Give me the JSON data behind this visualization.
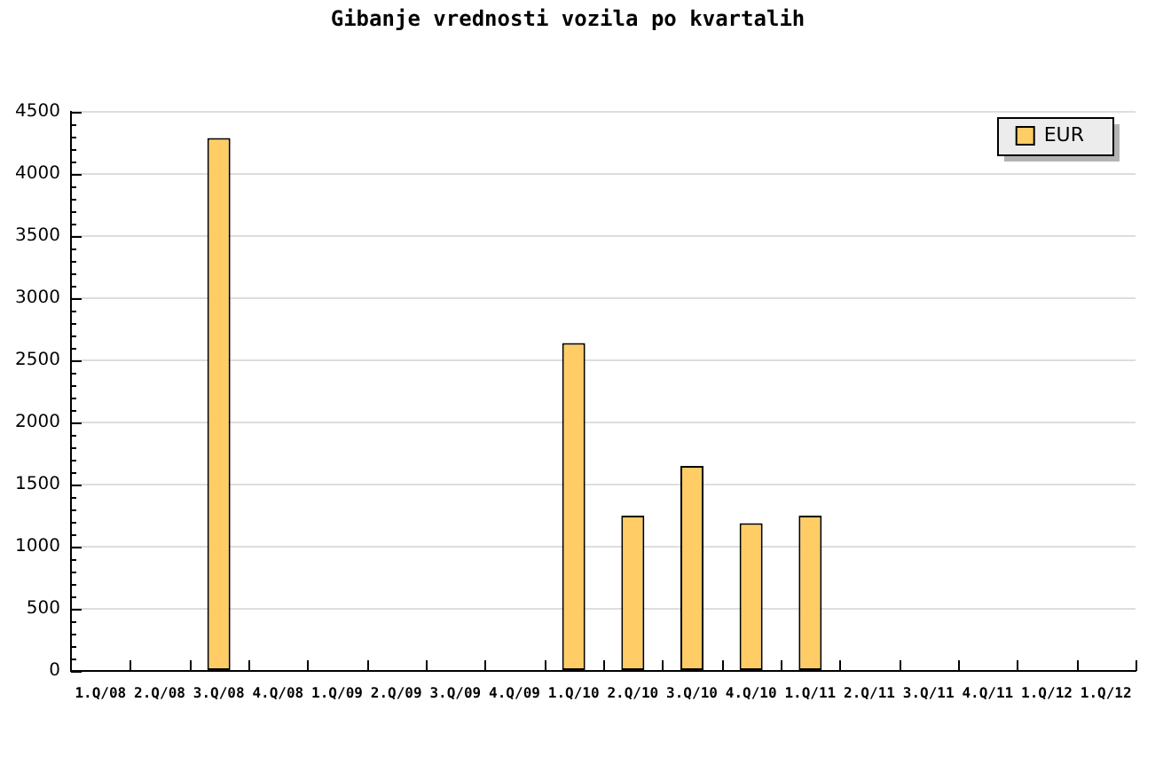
{
  "chart_data": {
    "type": "bar",
    "title": "Gibanje vrednosti vozila po kvartalih",
    "categories": [
      "1.Q/08",
      "2.Q/08",
      "3.Q/08",
      "4.Q/08",
      "1.Q/09",
      "2.Q/09",
      "3.Q/09",
      "4.Q/09",
      "1.Q/10",
      "2.Q/10",
      "3.Q/10",
      "4.Q/10",
      "1.Q/11",
      "2.Q/11",
      "3.Q/11",
      "4.Q/11",
      "1.Q/12",
      "1.Q/12"
    ],
    "series": [
      {
        "name": "EUR",
        "color": "#ffcc66",
        "values": [
          null,
          null,
          4290,
          null,
          null,
          null,
          null,
          null,
          2640,
          1250,
          1650,
          1190,
          1250,
          null,
          null,
          null,
          null,
          null
        ]
      }
    ],
    "ylim": [
      0,
      4500
    ],
    "yticks": [
      0,
      {
        "value": 100,
        "label": null
      },
      {
        "value": 200,
        "label": null
      },
      {
        "value": 300,
        "label": null
      },
      {
        "value": 400,
        "label": null
      },
      500,
      {
        "value": 600,
        "label": null
      },
      {
        "value": 700,
        "label": null
      },
      {
        "value": 800,
        "label": null
      },
      {
        "value": 900,
        "label": null
      },
      1000,
      {
        "value": 1100,
        "label": null
      },
      {
        "value": 1200,
        "label": null
      },
      {
        "value": 1300,
        "label": null
      },
      {
        "value": 1400,
        "label": null
      },
      1500,
      {
        "value": 1600,
        "label": null
      },
      {
        "value": 1700,
        "label": null
      },
      {
        "value": 1800,
        "label": null
      },
      {
        "value": 1900,
        "label": null
      },
      2000,
      {
        "value": 2100,
        "label": null
      },
      {
        "value": 2200,
        "label": null
      },
      {
        "value": 2300,
        "label": null
      },
      {
        "value": 2400,
        "label": null
      },
      2500,
      {
        "value": 2600,
        "label": null
      },
      {
        "value": 2700,
        "label": null
      },
      {
        "value": 2800,
        "label": null
      },
      {
        "value": 2900,
        "label": null
      },
      3000,
      {
        "value": 3100,
        "label": null
      },
      {
        "value": 3200,
        "label": null
      },
      {
        "value": 3300,
        "label": null
      },
      {
        "value": 3400,
        "label": null
      },
      3500,
      {
        "value": 3600,
        "label": null
      },
      {
        "value": 3700,
        "label": null
      },
      {
        "value": 3800,
        "label": null
      },
      {
        "value": 3900,
        "label": null
      },
      4000,
      {
        "value": 4100,
        "label": null
      },
      {
        "value": 4200,
        "label": null
      },
      {
        "value": 4300,
        "label": null
      },
      {
        "value": 4400,
        "label": null
      },
      4500
    ],
    "grid": "y",
    "legend": "top right"
  }
}
